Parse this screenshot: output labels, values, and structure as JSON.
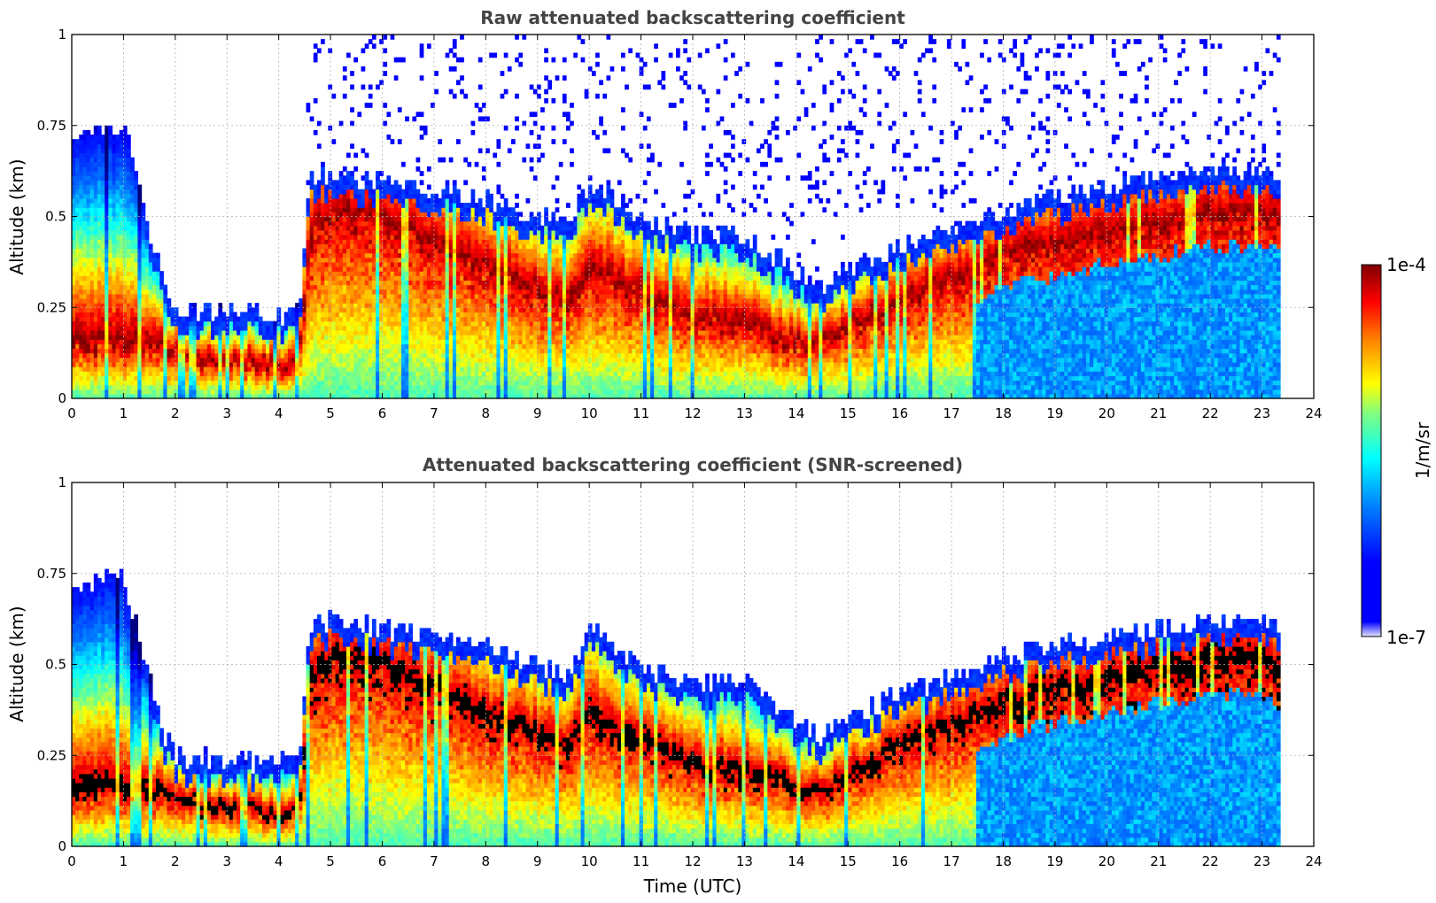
{
  "chart_data": [
    {
      "type": "heatmap",
      "title": "Raw attenuated backscattering coefficient",
      "xlabel": "",
      "ylabel": "Altitude (km)",
      "xlim": [
        0,
        24
      ],
      "ylim": [
        0,
        1
      ],
      "xticks": [
        "0",
        "1",
        "2",
        "3",
        "4",
        "5",
        "6",
        "7",
        "8",
        "9",
        "10",
        "11",
        "12",
        "13",
        "14",
        "15",
        "16",
        "17",
        "18",
        "19",
        "20",
        "21",
        "22",
        "23",
        "24"
      ],
      "yticks": [
        "0",
        "0.25",
        "0.5",
        "0.75",
        "1"
      ],
      "grid": true,
      "time_h": [
        0,
        1,
        1.8,
        2,
        3,
        4,
        4.4,
        4.6,
        5,
        6,
        7,
        8,
        9,
        9.6,
        10,
        11,
        12,
        13,
        14,
        14.5,
        15,
        16,
        17,
        18,
        19,
        20,
        21,
        22,
        23,
        23.35
      ],
      "layer_top_km": [
        0.7,
        0.75,
        0.3,
        0.25,
        0.24,
        0.23,
        0.24,
        0.6,
        0.62,
        0.6,
        0.58,
        0.55,
        0.5,
        0.48,
        0.6,
        0.5,
        0.45,
        0.45,
        0.35,
        0.3,
        0.35,
        0.42,
        0.47,
        0.52,
        0.55,
        0.58,
        0.6,
        0.62,
        0.63,
        0.6
      ],
      "layer_peak_km": [
        0.15,
        0.15,
        0.14,
        0.12,
        0.1,
        0.09,
        0.1,
        0.45,
        0.5,
        0.5,
        0.42,
        0.35,
        0.3,
        0.25,
        0.35,
        0.28,
        0.22,
        0.2,
        0.15,
        0.15,
        0.18,
        0.27,
        0.32,
        0.38,
        0.42,
        0.45,
        0.47,
        0.5,
        0.5,
        0.48
      ],
      "missing_data_after_h": 23.35
    },
    {
      "type": "heatmap",
      "title": "Attenuated backscattering coefficient (SNR-screened)",
      "xlabel": "Time (UTC)",
      "ylabel": "Altitude (km)",
      "xlim": [
        0,
        24
      ],
      "ylim": [
        0,
        1
      ],
      "xticks": [
        "0",
        "1",
        "2",
        "3",
        "4",
        "5",
        "6",
        "7",
        "8",
        "9",
        "10",
        "11",
        "12",
        "13",
        "14",
        "15",
        "16",
        "17",
        "18",
        "19",
        "20",
        "21",
        "22",
        "23",
        "24"
      ],
      "yticks": [
        "0",
        "0.25",
        "0.5",
        "0.75",
        "1"
      ],
      "grid": true,
      "screened_note": "saturated core rendered black",
      "missing_data_after_h": 23.35
    }
  ],
  "colorbar": {
    "max_label": "1e-4",
    "min_label": "1e-7",
    "unit": "1/m/sr",
    "colormap": [
      "#00007f",
      "#0000ff",
      "#0080ff",
      "#00ffff",
      "#80ff80",
      "#ffff00",
      "#ff8000",
      "#ff0000",
      "#7f0000"
    ],
    "low_end_color": "#e6e6ff"
  }
}
